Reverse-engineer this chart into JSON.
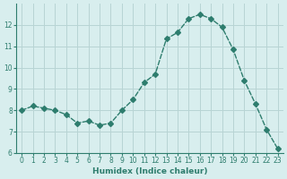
{
  "x": [
    0,
    1,
    2,
    3,
    4,
    5,
    6,
    7,
    8,
    9,
    10,
    11,
    12,
    13,
    14,
    15,
    16,
    17,
    18,
    19,
    20,
    21,
    22,
    23
  ],
  "y": [
    8.0,
    8.2,
    8.1,
    8.0,
    7.8,
    7.4,
    7.5,
    7.3,
    7.4,
    8.0,
    8.5,
    9.3,
    9.7,
    11.35,
    11.65,
    12.3,
    12.5,
    12.3,
    11.9,
    10.85,
    9.4,
    8.3,
    7.1,
    6.2
  ],
  "line_color": "#2e7d6e",
  "marker": "D",
  "marker_size": 3,
  "bg_color": "#d8eeee",
  "grid_color": "#b8d4d4",
  "xlabel": "Humidex (Indice chaleur)",
  "ylim": [
    6,
    13
  ],
  "xlim": [
    -0.5,
    23.5
  ],
  "yticks": [
    6,
    7,
    8,
    9,
    10,
    11,
    12
  ],
  "xticks": [
    0,
    1,
    2,
    3,
    4,
    5,
    6,
    7,
    8,
    9,
    10,
    11,
    12,
    13,
    14,
    15,
    16,
    17,
    18,
    19,
    20,
    21,
    22,
    23
  ],
  "font_color": "#2e7d6e"
}
